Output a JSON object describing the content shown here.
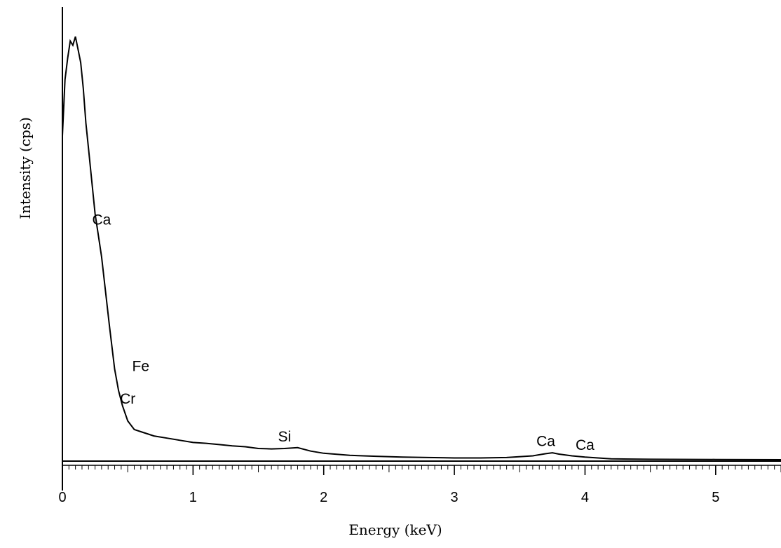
{
  "chart_data": {
    "type": "line",
    "title": "",
    "xlabel": "Energy (keV)",
    "ylabel": "Intensity (cps)",
    "xlim": [
      0,
      5.5
    ],
    "ylim": [
      0,
      100
    ],
    "x_ticks": [
      "0",
      "1",
      "2",
      "3",
      "4",
      "5"
    ],
    "grid": false,
    "series": [
      {
        "x": [
          0.0,
          0.02,
          0.04,
          0.06,
          0.08,
          0.1,
          0.12,
          0.14,
          0.16,
          0.18,
          0.2,
          0.22,
          0.25,
          0.28,
          0.3,
          0.33,
          0.36,
          0.4,
          0.43,
          0.46,
          0.5,
          0.55,
          0.6,
          0.65,
          0.7,
          0.8,
          0.9,
          1.0,
          1.1,
          1.2,
          1.3,
          1.4,
          1.5,
          1.6,
          1.7,
          1.8,
          1.9,
          2.0,
          2.2,
          2.4,
          2.6,
          2.8,
          3.0,
          3.2,
          3.4,
          3.6,
          3.7,
          3.75,
          3.8,
          3.9,
          4.0,
          4.1,
          4.2,
          4.5,
          5.0,
          5.5
        ],
        "y": [
          75.0,
          88.0,
          93.0,
          97.0,
          96.0,
          98.0,
          95.0,
          92.0,
          86.0,
          78.0,
          72.0,
          66.0,
          57.0,
          51.0,
          47.0,
          39.0,
          31.0,
          21.0,
          16.0,
          12.5,
          9.0,
          7.0,
          6.5,
          6.0,
          5.5,
          5.0,
          4.5,
          4.0,
          3.8,
          3.5,
          3.2,
          3.0,
          2.6,
          2.5,
          2.6,
          2.8,
          2.0,
          1.5,
          1.0,
          0.8,
          0.6,
          0.5,
          0.4,
          0.4,
          0.5,
          0.9,
          1.4,
          1.6,
          1.3,
          0.9,
          0.6,
          0.4,
          0.2,
          0.1,
          0.05,
          0.0
        ]
      }
    ],
    "annotations": [
      {
        "text": "Ca",
        "x": 0.3,
        "y": 54.5
      },
      {
        "text": "Fe",
        "x": 0.6,
        "y": 20.5
      },
      {
        "text": "Cr",
        "x": 0.5,
        "y": 13.0
      },
      {
        "text": "Si",
        "x": 1.7,
        "y": 4.2
      },
      {
        "text": "Ca",
        "x": 3.7,
        "y": 3.2
      },
      {
        "text": "Ca",
        "x": 4.0,
        "y": 2.3
      }
    ]
  }
}
